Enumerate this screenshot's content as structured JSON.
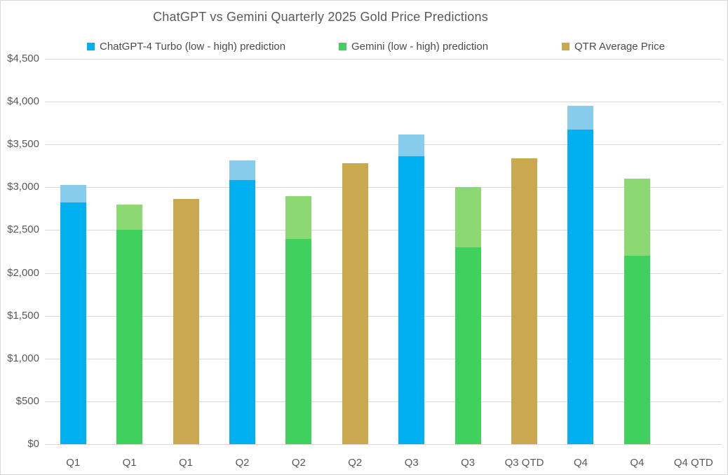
{
  "chart_data": {
    "type": "bar",
    "title": "ChatGPT vs Gemini Quarterly 2025 Gold Price Predictions",
    "subtitle": "",
    "legend_position": "top",
    "grid": "horizontal",
    "y_axis": {
      "min": 0,
      "max": 4500,
      "step": 500,
      "ticks": [
        {
          "value": 0,
          "label": "$0"
        },
        {
          "value": 500,
          "label": "$500"
        },
        {
          "value": 1000,
          "label": "$1,000"
        },
        {
          "value": 1500,
          "label": "$1,500"
        },
        {
          "value": 2000,
          "label": "$2,000"
        },
        {
          "value": 2500,
          "label": "$2,500"
        },
        {
          "value": 3000,
          "label": "$3,000"
        },
        {
          "value": 3500,
          "label": "$3,500"
        },
        {
          "value": 4000,
          "label": "$4,000"
        },
        {
          "value": 4500,
          "label": "$4,500"
        }
      ]
    },
    "categories": [
      "Q1",
      "Q1",
      "Q1",
      "Q2",
      "Q2",
      "Q2",
      "Q3",
      "Q3",
      "Q3 QTD",
      "Q4",
      "Q4",
      "Q4 QTD"
    ],
    "legend": [
      {
        "id": "chatgpt",
        "label": "ChatGPT-4 Turbo (low - high) prediction",
        "color": "#00B0F0"
      },
      {
        "id": "gemini",
        "label": "Gemini (low - high) prediction",
        "color": "#40D05E"
      },
      {
        "id": "average",
        "label": "QTR Average Price",
        "color": "#C9A850"
      }
    ],
    "palette": {
      "chatgpt": {
        "main": "#00B0F0",
        "light": "#87CDEB"
      },
      "gemini": {
        "main": "#40D05E",
        "light": "#8CD873"
      },
      "average": {
        "main": "#C9A850"
      },
      "gridline": "#D9D9D9",
      "axis_text": "#595959",
      "title_text": "#595959"
    },
    "bars": [
      {
        "category_index": 0,
        "category": "Q1",
        "series": "chatgpt",
        "low": 2820,
        "high": 3030
      },
      {
        "category_index": 1,
        "category": "Q1",
        "series": "gemini",
        "low": 2500,
        "high": 2800
      },
      {
        "category_index": 2,
        "category": "Q1",
        "series": "average",
        "value": 2860
      },
      {
        "category_index": 3,
        "category": "Q2",
        "series": "chatgpt",
        "low": 3085,
        "high": 3310
      },
      {
        "category_index": 4,
        "category": "Q2",
        "series": "gemini",
        "low": 2400,
        "high": 2900
      },
      {
        "category_index": 5,
        "category": "Q2",
        "series": "average",
        "value": 3280
      },
      {
        "category_index": 6,
        "category": "Q3",
        "series": "chatgpt",
        "low": 3365,
        "high": 3615
      },
      {
        "category_index": 7,
        "category": "Q3",
        "series": "gemini",
        "low": 2300,
        "high": 3000
      },
      {
        "category_index": 8,
        "category": "Q3 QTD",
        "series": "average",
        "value": 3335
      },
      {
        "category_index": 9,
        "category": "Q4",
        "series": "chatgpt",
        "low": 3675,
        "high": 3950
      },
      {
        "category_index": 10,
        "category": "Q4",
        "series": "gemini",
        "low": 2200,
        "high": 3100
      },
      {
        "category_index": 11,
        "category": "Q4 QTD",
        "series": "average",
        "value": null
      }
    ]
  }
}
